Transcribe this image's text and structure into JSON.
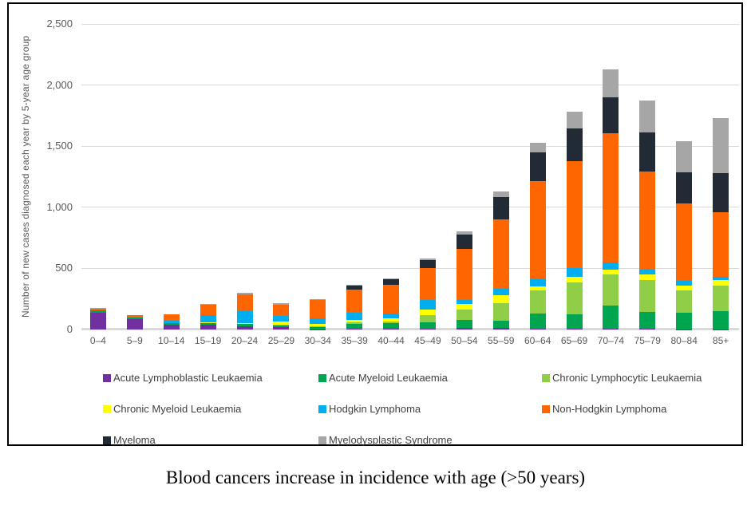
{
  "caption": "Blood cancers increase in incidence with age (>50 years)",
  "chart_data": {
    "type": "bar",
    "stacked": true,
    "caption": "Blood cancers increase in incidence with age (>50 years)",
    "ylabel": "Number of new cases diagnosed each year by 5-year age group",
    "xlabel": "",
    "ylim": [
      0,
      2500
    ],
    "grid": true,
    "legend_position": "bottom",
    "y_ticks": [
      "0",
      "500",
      "1,000",
      "1,500",
      "2,000",
      "2,500"
    ],
    "categories": [
      "0–4",
      "5–9",
      "10–14",
      "15–19",
      "20–24",
      "25–29",
      "30–34",
      "35–39",
      "40–44",
      "45–49",
      "50–54",
      "55–59",
      "60–64",
      "65–69",
      "70–74",
      "75–79",
      "80–84",
      "85+"
    ],
    "series": [
      {
        "name": "Acute Lymphoblastic Leukaemia",
        "color": "#7030A0",
        "values": [
          135,
          88,
          40,
          38,
          26,
          17,
          3,
          4,
          4,
          5,
          10,
          10,
          8,
          5,
          8,
          4,
          3,
          3
        ]
      },
      {
        "name": "Acute Myeloid Leukaemia",
        "color": "#00A54F",
        "values": [
          22,
          7,
          10,
          15,
          17,
          15,
          15,
          45,
          48,
          52,
          70,
          60,
          120,
          120,
          190,
          140,
          135,
          150
        ]
      },
      {
        "name": "Chronic Lymphocytic Leukaemia",
        "color": "#8FCE46",
        "values": [
          0,
          0,
          0,
          0,
          0,
          5,
          5,
          12,
          15,
          60,
          85,
          145,
          190,
          260,
          250,
          260,
          180,
          205
        ]
      },
      {
        "name": "Chronic Myeloid Leukaemia",
        "color": "#FFFF00",
        "values": [
          0,
          0,
          2,
          8,
          9,
          26,
          20,
          17,
          22,
          48,
          42,
          65,
          35,
          48,
          45,
          48,
          43,
          45
        ]
      },
      {
        "name": "Hodgkin Lymphoma",
        "color": "#00AEEF",
        "values": [
          3,
          6,
          22,
          55,
          100,
          46,
          48,
          60,
          43,
          80,
          35,
          55,
          60,
          70,
          55,
          40,
          37,
          30
        ]
      },
      {
        "name": "Non-Hodgkin Lymphoma",
        "color": "#FF6600",
        "values": [
          12,
          15,
          48,
          85,
          137,
          96,
          150,
          190,
          235,
          260,
          420,
          565,
          800,
          875,
          1060,
          800,
          635,
          530
        ]
      },
      {
        "name": "Myeloma",
        "color": "#222A35",
        "values": [
          0,
          0,
          0,
          0,
          0,
          0,
          0,
          30,
          43,
          65,
          115,
          185,
          235,
          270,
          290,
          320,
          255,
          320
        ]
      },
      {
        "name": "Myelodysplastic Syndrome",
        "color": "#A6A6A6",
        "values": [
          3,
          2,
          3,
          8,
          11,
          11,
          9,
          8,
          5,
          10,
          28,
          45,
          80,
          135,
          230,
          265,
          255,
          445
        ]
      }
    ]
  }
}
